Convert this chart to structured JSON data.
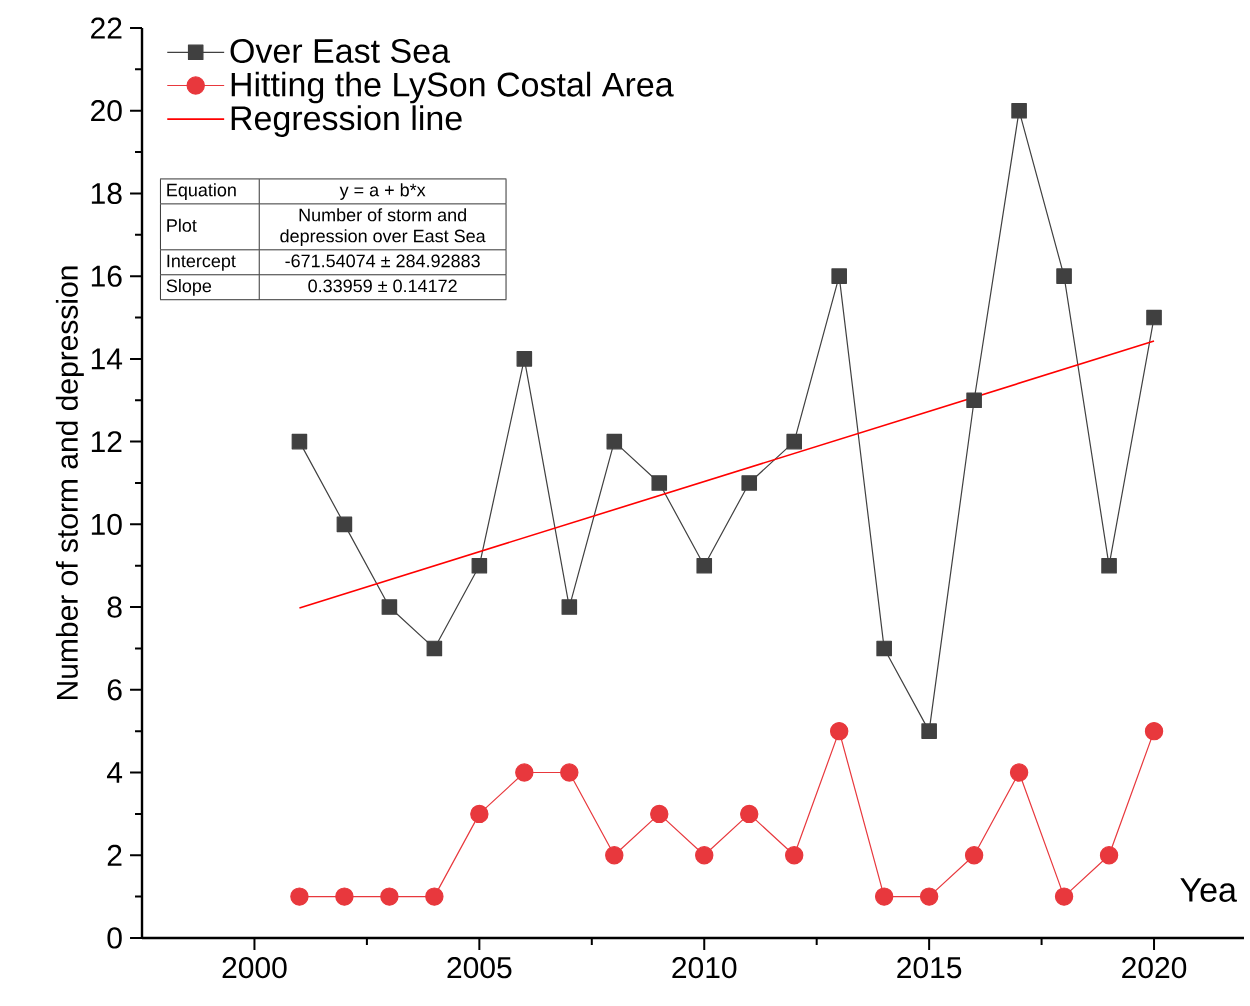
{
  "chart_data": {
    "type": "line",
    "xlabel": "Yea",
    "ylabel": "Number of storm and depression",
    "x": [
      2001,
      2002,
      2003,
      2004,
      2005,
      2006,
      2007,
      2008,
      2009,
      2010,
      2011,
      2012,
      2013,
      2014,
      2015,
      2016,
      2017,
      2018,
      2019,
      2020
    ],
    "series": [
      {
        "name": "Over East Sea",
        "color": "#404040",
        "marker": "square",
        "values": [
          12,
          10,
          8,
          7,
          9,
          14,
          8,
          12,
          11,
          9,
          11,
          12,
          16,
          7,
          5,
          13,
          20,
          16,
          9,
          15
        ]
      },
      {
        "name": "Hitting the LySon Costal Area",
        "color": "#e8383d",
        "marker": "circle",
        "values": [
          1,
          1,
          1,
          1,
          3,
          4,
          4,
          2,
          3,
          2,
          3,
          2,
          5,
          1,
          1,
          2,
          4,
          1,
          2,
          5
        ]
      },
      {
        "name": "Regression line",
        "type": "line",
        "color": "#ff0000",
        "marker": "none",
        "x": [
          2001,
          2020
        ],
        "values": [
          7.98,
          14.43
        ]
      }
    ],
    "xlim": [
      1997.5,
      2022
    ],
    "xticks": [
      2000,
      2005,
      2010,
      2015,
      2020
    ],
    "ylim": [
      0,
      22
    ],
    "yticks": [
      0,
      2,
      4,
      6,
      8,
      10,
      12,
      14,
      16,
      18,
      20,
      22
    ],
    "legend": "top left",
    "annotations": [
      "Equation",
      "y = a + b*x",
      "Plot",
      "Number of storm and depression over East Sea",
      "Intercept",
      "-671.54074 ± 284.92883",
      "Slope",
      "0.33959 ± 0.14172"
    ]
  }
}
